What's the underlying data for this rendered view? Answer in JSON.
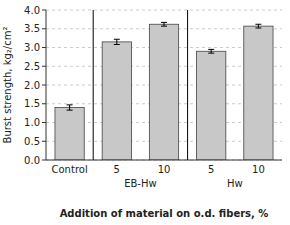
{
  "chart_data": {
    "type": "bar",
    "categories": [
      "Control",
      "5",
      "10",
      "5",
      "10"
    ],
    "values": [
      1.4,
      3.15,
      3.62,
      2.9,
      3.57
    ],
    "errors": [
      0.07,
      0.07,
      0.05,
      0.05,
      0.05
    ],
    "color": "#c8c8c8",
    "ylim": [
      0.0,
      4.0
    ],
    "yticks": [
      {
        "value": 0,
        "label": "0.0"
      },
      0.5,
      {
        "value": 1,
        "label": "1.0"
      },
      1.5,
      {
        "value": 2,
        "label": "2.0"
      },
      2.5,
      {
        "value": 3,
        "label": "3.0"
      },
      3.5,
      {
        "value": 4,
        "label": "4.0"
      }
    ],
    "ylabel": "Burst strength, kg₂/cm²",
    "xlabel": "Addition of material on o.d. fibers, %",
    "group_labels": [
      "EB-Hw",
      "Hw"
    ],
    "grid": true
  }
}
